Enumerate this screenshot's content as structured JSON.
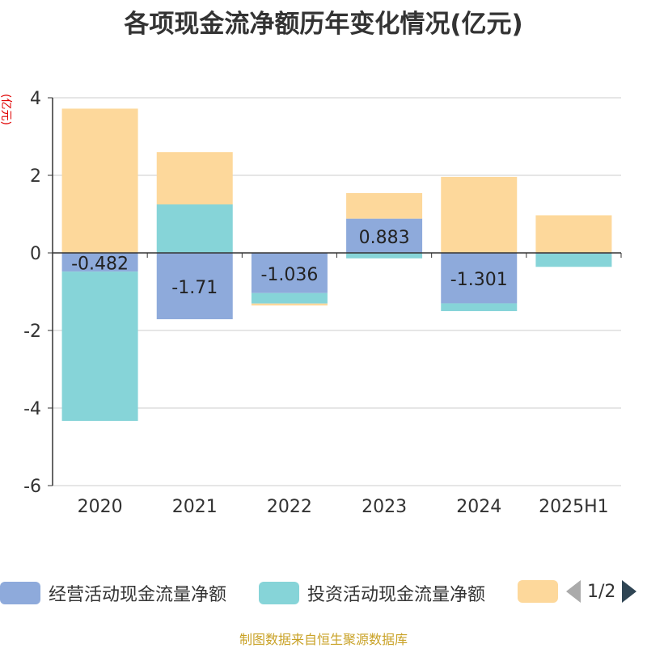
{
  "title": "各项现金流净额历年变化情况(亿元)",
  "unit_label": "(亿元)",
  "source": "制图数据来自恒生聚源数据库",
  "legend": {
    "items": [
      {
        "label": "经营活动现金流量净额",
        "color": "#8eaadb"
      },
      {
        "label": "投资活动现金流量净额",
        "color": "#86d4d8"
      },
      {
        "label": "",
        "color": "#fdd89b"
      }
    ],
    "page": "1/2"
  },
  "chart_data": {
    "type": "bar",
    "stacked": true,
    "categories": [
      "2020",
      "2021",
      "2022",
      "2023",
      "2024",
      "2025H1"
    ],
    "ylim": [
      -6,
      4
    ],
    "yticks": [
      4,
      2,
      0,
      -2,
      -4,
      -6
    ],
    "series": [
      {
        "name": "经营活动现金流量净额",
        "color": "#8eaadb",
        "values": [
          -0.482,
          -1.71,
          -1.036,
          0.883,
          -1.301,
          -0.02
        ],
        "labels": [
          "-0.482",
          "-1.71",
          "-1.036",
          "0.883",
          "-1.301",
          ""
        ]
      },
      {
        "name": "投资活动现金流量净额",
        "color": "#86d4d8",
        "values": [
          -3.85,
          1.25,
          -0.27,
          -0.14,
          -0.2,
          -0.34
        ]
      },
      {
        "name": "",
        "color": "#fdd89b",
        "values": [
          3.72,
          1.35,
          -0.05,
          0.66,
          1.96,
          0.97
        ]
      }
    ]
  }
}
